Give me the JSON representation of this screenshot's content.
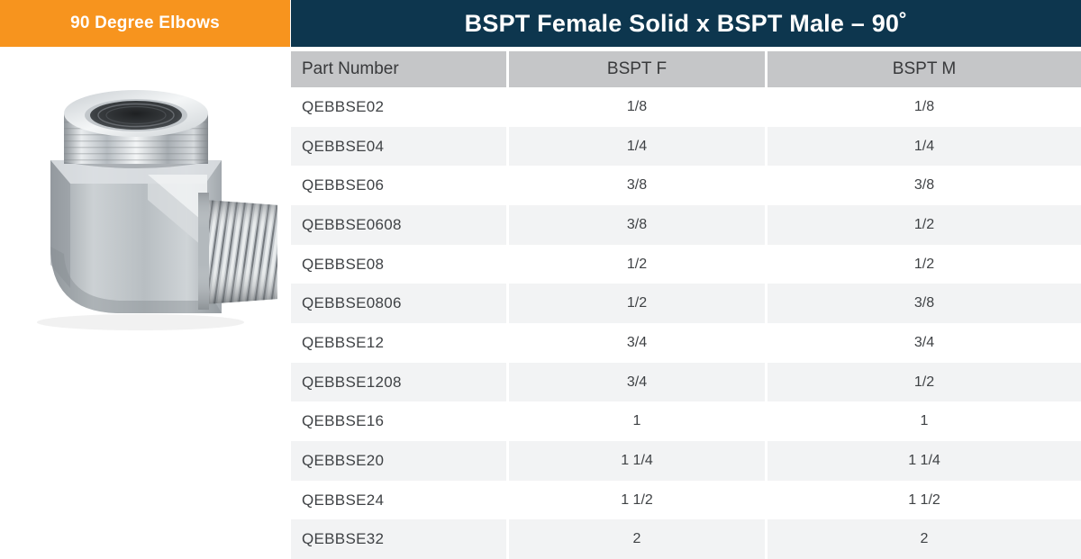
{
  "banners": {
    "category": "90 Degree Elbows",
    "title": "BSPT Female Solid x BSPT Male – 90˚"
  },
  "product_image": {
    "name": "90-degree-elbow-fitting-photo",
    "description": "Steel 90 degree elbow, BSPT female top port x BSPT male right port"
  },
  "table": {
    "columns": [
      "Part Number",
      "BSPT F",
      "BSPT M"
    ],
    "rows": [
      [
        "QEBBSE02",
        "1/8",
        "1/8"
      ],
      [
        "QEBBSE04",
        "1/4",
        "1/4"
      ],
      [
        "QEBBSE06",
        "3/8",
        "3/8"
      ],
      [
        "QEBBSE0608",
        "3/8",
        "1/2"
      ],
      [
        "QEBBSE08",
        "1/2",
        "1/2"
      ],
      [
        "QEBBSE0806",
        "1/2",
        "3/8"
      ],
      [
        "QEBBSE12",
        "3/4",
        "3/4"
      ],
      [
        "QEBBSE1208",
        "3/4",
        "1/2"
      ],
      [
        "QEBBSE16",
        "1",
        "1"
      ],
      [
        "QEBBSE20",
        "1 1/4",
        "1 1/4"
      ],
      [
        "QEBBSE24",
        "1 1/2",
        "1 1/2"
      ],
      [
        "QEBBSE32",
        "2",
        "2"
      ]
    ]
  },
  "colors": {
    "orange": "#f7941e",
    "navy": "#0d364e",
    "header_gray": "#c5c6c8",
    "row_alt": "#f2f3f4",
    "text": "#3f4245"
  }
}
